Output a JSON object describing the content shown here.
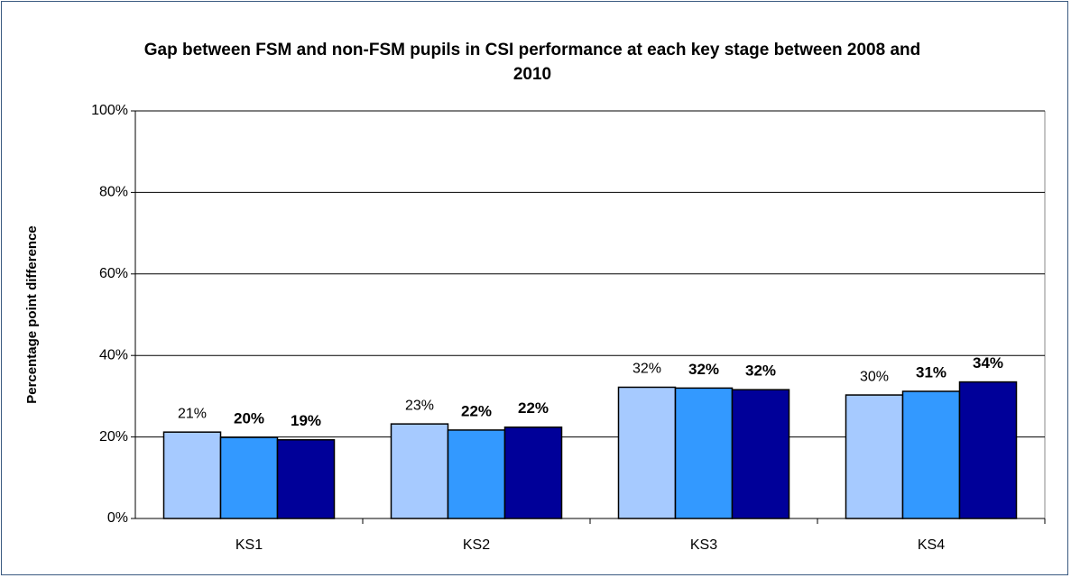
{
  "chart_data": {
    "type": "bar",
    "title": "Gap between FSM and non-FSM pupils in CSI performance at each key stage between 2008 and 2010",
    "y_label": "Percentage point difference",
    "categories": [
      "KS1",
      "KS2",
      "KS3",
      "KS4"
    ],
    "series": [
      {
        "color": "#a6caff",
        "values": [
          21.2,
          23.2,
          32.2,
          30.3
        ],
        "value_labels": [
          "21%",
          "23%",
          "32%",
          "30%"
        ]
      },
      {
        "color": "#3399ff",
        "values": [
          19.9,
          21.7,
          32.0,
          31.2
        ],
        "value_labels": [
          "20%",
          "22%",
          "32%",
          "31%"
        ]
      },
      {
        "color": "#000099",
        "values": [
          19.3,
          22.4,
          31.6,
          33.5
        ],
        "value_labels": [
          "19%",
          "22%",
          "32%",
          "34%"
        ]
      }
    ],
    "ylim": [
      0,
      100
    ],
    "yticks": [
      {
        "value": 0,
        "label": "0%"
      },
      {
        "value": 20,
        "label": "20%"
      },
      {
        "value": 40,
        "label": "40%"
      },
      {
        "value": 60,
        "label": "60%"
      },
      {
        "value": 80,
        "label": "80%"
      },
      {
        "value": 100,
        "label": "100%"
      }
    ],
    "grid": true
  }
}
